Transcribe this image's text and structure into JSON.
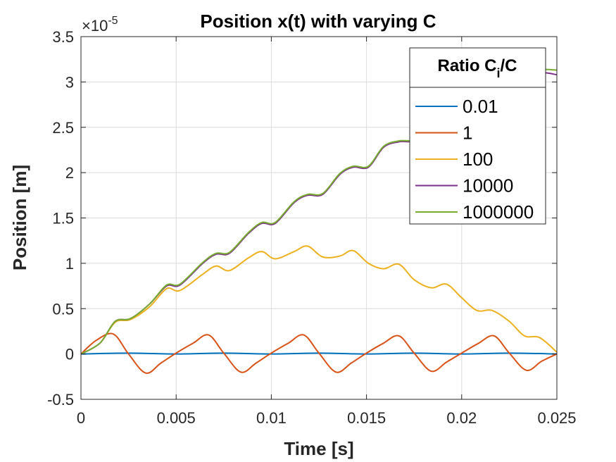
{
  "chart_data": {
    "type": "line",
    "title": "Position x(t) with varying C",
    "xlabel": "Time [s]",
    "ylabel": "Position [m]",
    "y_exponent_label": "×10",
    "y_exponent": "-5",
    "xlim": [
      0,
      0.025
    ],
    "ylim": [
      -0.5,
      3.5
    ],
    "xticks": [
      0,
      0.005,
      0.01,
      0.015,
      0.02,
      0.025
    ],
    "xtick_labels": [
      "0",
      "0.005",
      "0.01",
      "0.015",
      "0.02",
      "0.025"
    ],
    "yticks": [
      -0.5,
      0,
      0.5,
      1,
      1.5,
      2,
      2.5,
      3,
      3.5
    ],
    "ytick_labels": [
      "-0.5",
      "0",
      "0.5",
      "1",
      "1.5",
      "2",
      "2.5",
      "3",
      "3.5"
    ],
    "grid": true,
    "legend": {
      "title_main": "Ratio C",
      "title_sub": "i",
      "title_tail": "/C",
      "placement": "top-right"
    },
    "series": [
      {
        "name": "0.01",
        "color": "#0072BD",
        "x": [
          0,
          0.0025,
          0.005,
          0.0075,
          0.01,
          0.0125,
          0.015,
          0.0175,
          0.02,
          0.0225,
          0.025
        ],
        "y": [
          0,
          0.01,
          0,
          0.01,
          0,
          0.01,
          0,
          0.01,
          0,
          0.01,
          0
        ]
      },
      {
        "name": "1",
        "color": "#D95319",
        "x": [
          0,
          0.0008,
          0.0017,
          0.0025,
          0.0034,
          0.0042,
          0.005,
          0.0059,
          0.0067,
          0.0075,
          0.0084,
          0.0092,
          0.01,
          0.0109,
          0.0117,
          0.0125,
          0.0134,
          0.0142,
          0.015,
          0.0159,
          0.0167,
          0.0175,
          0.0184,
          0.0192,
          0.02,
          0.0209,
          0.0217,
          0.0225,
          0.0234,
          0.0242,
          0.025
        ],
        "y": [
          0,
          0.15,
          0.22,
          0,
          -0.21,
          -0.1,
          0.01,
          0.12,
          0.21,
          0.01,
          -0.2,
          -0.1,
          0.01,
          0.12,
          0.21,
          0.01,
          -0.2,
          -0.1,
          0.01,
          0.12,
          0.2,
          0.01,
          -0.19,
          -0.09,
          0.01,
          0.12,
          0.2,
          0.01,
          -0.18,
          -0.08,
          0
        ]
      },
      {
        "name": "100",
        "color": "#EDB120",
        "x": [
          0,
          0.001,
          0.0018,
          0.0026,
          0.0036,
          0.0045,
          0.0052,
          0.0064,
          0.0071,
          0.0078,
          0.0088,
          0.0095,
          0.0102,
          0.0112,
          0.0119,
          0.0127,
          0.0136,
          0.0143,
          0.0151,
          0.0159,
          0.0167,
          0.0175,
          0.0184,
          0.0192,
          0.02,
          0.0208,
          0.0216,
          0.0225,
          0.0233,
          0.0241,
          0.025
        ],
        "y": [
          0,
          0.12,
          0.35,
          0.38,
          0.52,
          0.72,
          0.7,
          0.88,
          0.97,
          0.92,
          1.06,
          1.13,
          1.05,
          1.13,
          1.19,
          1.07,
          1.08,
          1.14,
          1.0,
          0.94,
          0.99,
          0.82,
          0.73,
          0.77,
          0.62,
          0.48,
          0.48,
          0.36,
          0.2,
          0.18,
          0.02
        ]
      },
      {
        "name": "10000",
        "color": "#7E2F8E",
        "x": [
          0,
          0.001,
          0.0018,
          0.0026,
          0.0036,
          0.0045,
          0.0052,
          0.0064,
          0.0071,
          0.0078,
          0.0088,
          0.0095,
          0.0102,
          0.0112,
          0.0119,
          0.0127,
          0.0136,
          0.0143,
          0.0151,
          0.0159,
          0.0167,
          0.0175,
          0.0184,
          0.0192,
          0.02,
          0.0208,
          0.0216,
          0.0225,
          0.0233,
          0.0241,
          0.025
        ],
        "y": [
          0,
          0.12,
          0.36,
          0.39,
          0.55,
          0.75,
          0.76,
          1.0,
          1.1,
          1.11,
          1.33,
          1.44,
          1.44,
          1.67,
          1.75,
          1.76,
          1.98,
          2.06,
          2.06,
          2.28,
          2.34,
          2.36,
          2.56,
          2.66,
          2.66,
          2.88,
          2.96,
          2.96,
          3.0,
          3.1,
          3.08
        ]
      },
      {
        "name": "1000000",
        "color": "#77AC30",
        "x": [
          0,
          0.001,
          0.0018,
          0.0026,
          0.0036,
          0.0045,
          0.0052,
          0.0064,
          0.0071,
          0.0078,
          0.0088,
          0.0095,
          0.0102,
          0.0112,
          0.0119,
          0.0127,
          0.0136,
          0.0143,
          0.0151,
          0.0159,
          0.0167,
          0.0175,
          0.0184,
          0.0192,
          0.02,
          0.0208,
          0.0216,
          0.0225,
          0.0233,
          0.0241,
          0.025
        ],
        "y": [
          0,
          0.12,
          0.36,
          0.39,
          0.55,
          0.76,
          0.77,
          1.01,
          1.11,
          1.12,
          1.34,
          1.45,
          1.45,
          1.68,
          1.76,
          1.77,
          1.99,
          2.07,
          2.07,
          2.29,
          2.35,
          2.37,
          2.57,
          2.67,
          2.67,
          2.89,
          2.97,
          2.97,
          3.02,
          3.13,
          3.13
        ]
      }
    ]
  }
}
